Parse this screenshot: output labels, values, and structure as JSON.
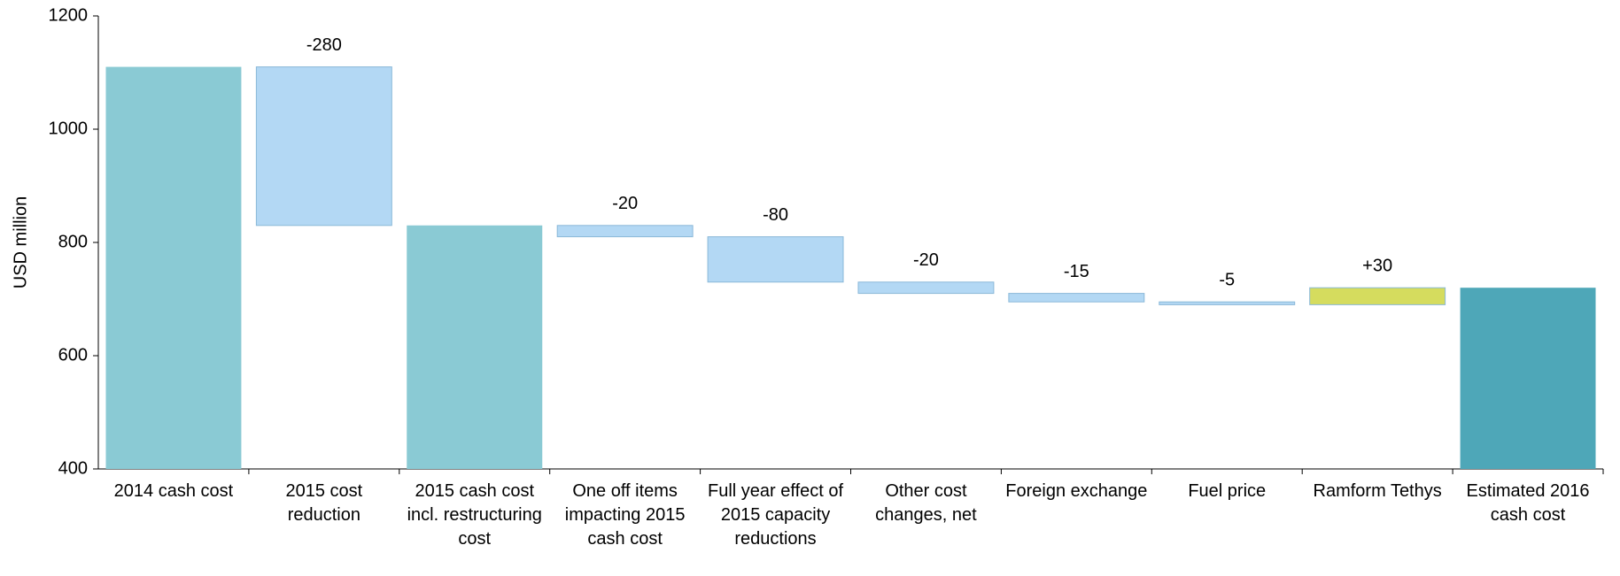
{
  "chart_data": {
    "type": "waterfall",
    "y_label": "USD million",
    "categories": [
      "2014 cash cost",
      "2015 cost reduction",
      "2015 cash cost incl. restructuring cost",
      "One off items impacting 2015 cash cost",
      "Full year effect of 2015 capacity reductions",
      "Other cost changes, net",
      "Foreign exchange",
      "Fuel price",
      "Ramform Tethys",
      "Estimated 2016 cash cost"
    ],
    "measure": [
      "total",
      "relative",
      "total",
      "relative",
      "relative",
      "relative",
      "relative",
      "relative",
      "relative",
      "total"
    ],
    "values": [
      1110,
      -280,
      830,
      -20,
      -80,
      -20,
      -15,
      -5,
      30,
      720
    ],
    "value_labels": [
      null,
      "-280",
      null,
      "-20",
      "-80",
      "-20",
      "-15",
      "-5",
      "+30",
      null
    ],
    "colors": [
      "#63b8c6",
      "#b3d8f4",
      "#63b8c6",
      "#b3d8f4",
      "#b3d8f4",
      "#b3d8f4",
      "#b3d8f4",
      "#b3d8f4",
      "#d5dc5e",
      "#4ea7b8"
    ],
    "ylim": [
      400,
      1200
    ],
    "yticks": [
      400,
      600,
      800,
      1000,
      1200
    ]
  }
}
